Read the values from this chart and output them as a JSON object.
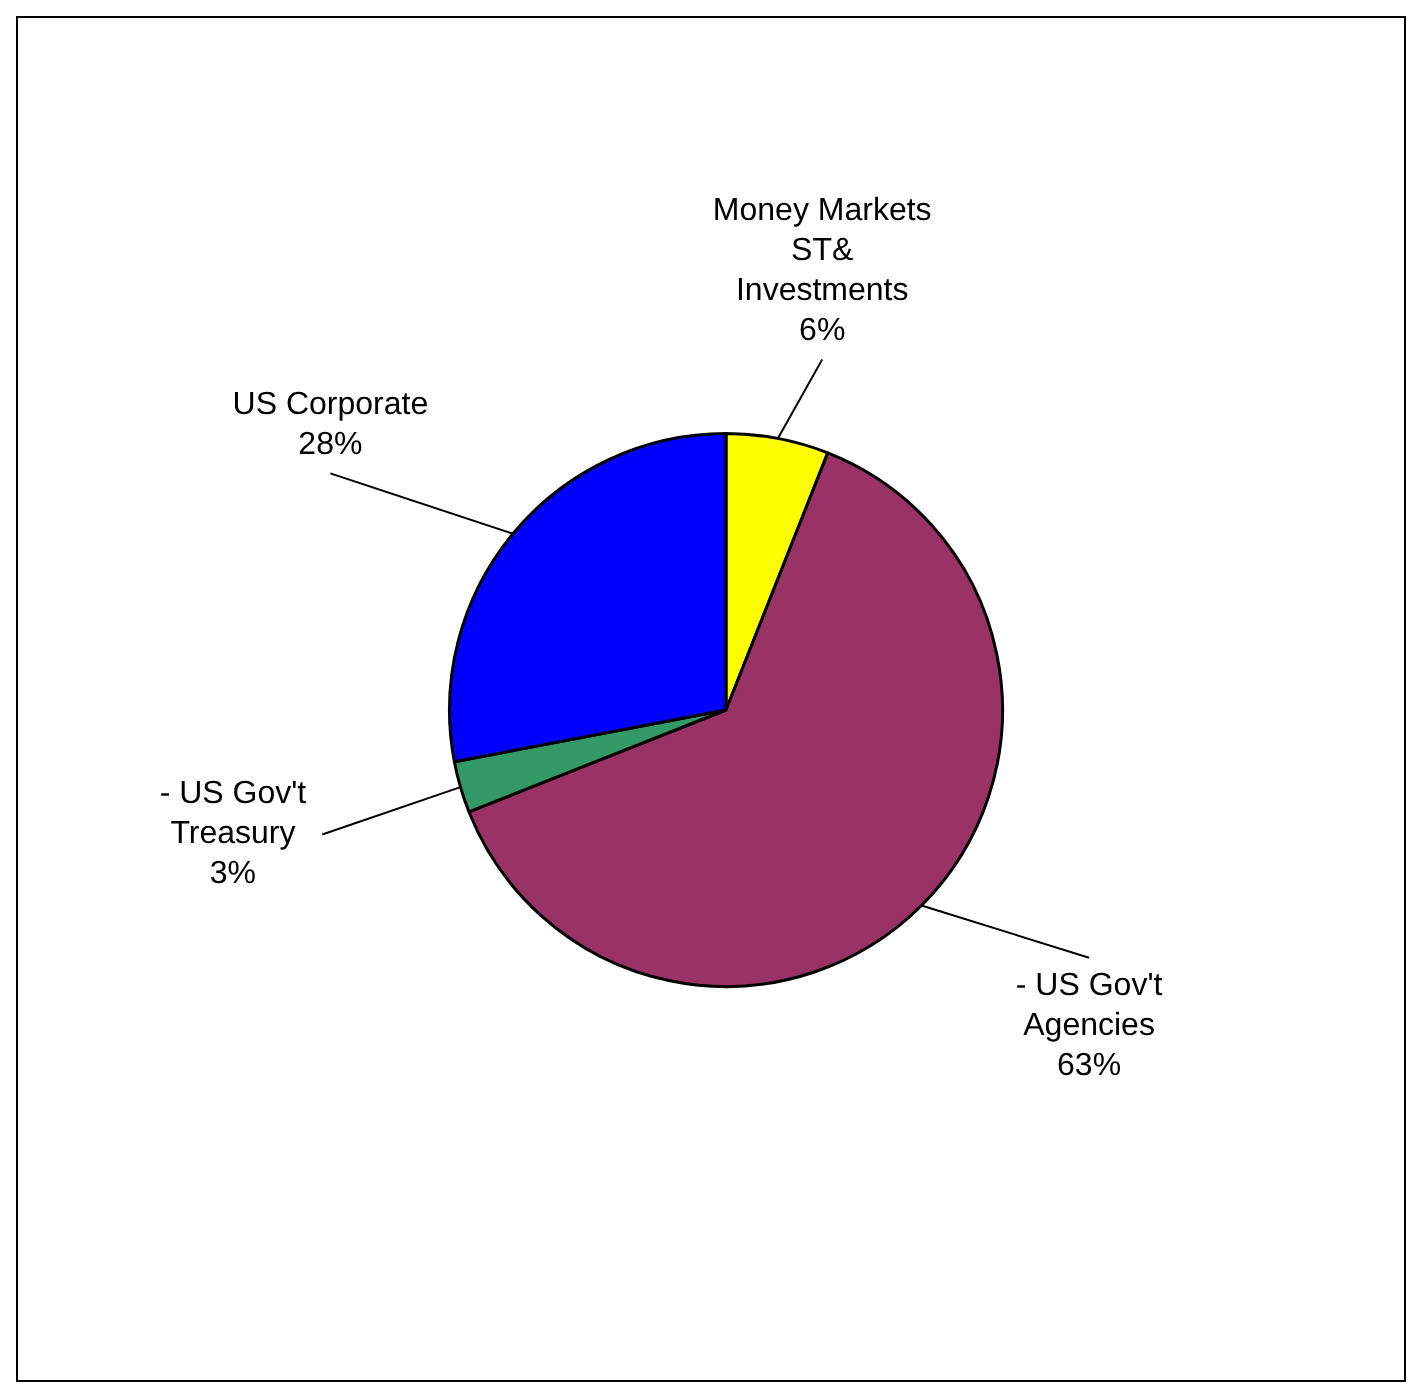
{
  "chart_data": {
    "type": "pie",
    "categories": [
      "Money Markets ST& Investments",
      "- US Gov't Agencies",
      "- US Gov't Treasury",
      "US Corporate"
    ],
    "values": [
      6,
      63,
      3,
      28
    ],
    "colors": [
      "#ffff00",
      "#993366",
      "#339966",
      "#0000ff"
    ],
    "value_labels": [
      "6%",
      "63%",
      "3%",
      "28%"
    ]
  }
}
